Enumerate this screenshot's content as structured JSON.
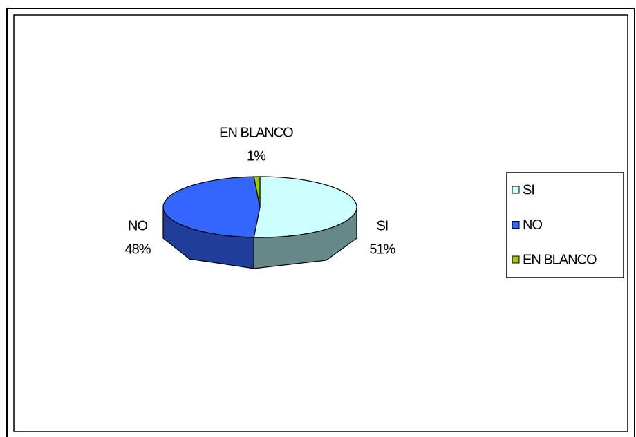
{
  "chart_data": {
    "type": "pie",
    "categories": [
      "SI",
      "NO",
      "EN BLANCO"
    ],
    "values": [
      51,
      48,
      1
    ],
    "value_labels": [
      "51%",
      "48%",
      "1%"
    ],
    "colors": [
      "#ccffff",
      "#3366ff",
      "#99cc00"
    ],
    "side_colors": [
      "#668888",
      "#1f3d99",
      "#5c7a00"
    ],
    "legend": "right"
  }
}
